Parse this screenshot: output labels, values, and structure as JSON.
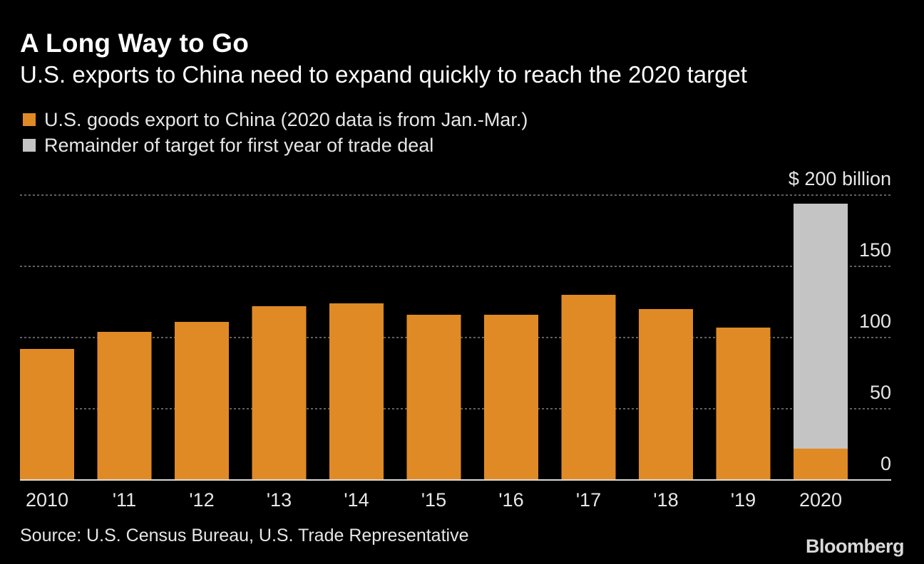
{
  "title": "A Long Way to Go",
  "subtitle": "U.S. exports to China need to expand quickly to reach the 2020 target",
  "legend": [
    {
      "label": "U.S. goods export to China (2020 data is from Jan.-Mar.)",
      "color": "#e08a26"
    },
    {
      "label": "Remainder of target for first year of trade deal",
      "color": "#c4c4c4"
    }
  ],
  "source": "Source: U.S. Census Bureau, U.S. Trade Representative",
  "brand": "Bloomberg",
  "chart_data": {
    "type": "bar",
    "stacked": true,
    "categories": [
      "2010",
      "'11",
      "'12",
      "'13",
      "'14",
      "'15",
      "'16",
      "'17",
      "'18",
      "'19",
      "2020"
    ],
    "series": [
      {
        "name": "U.S. goods export to China (2020 data is from Jan.-Mar.)",
        "color": "#e08a26",
        "values": [
          92,
          104,
          111,
          122,
          124,
          116,
          116,
          130,
          120,
          107,
          22
        ]
      },
      {
        "name": "Remainder of target for first year of trade deal",
        "color": "#c4c4c4",
        "values": [
          0,
          0,
          0,
          0,
          0,
          0,
          0,
          0,
          0,
          0,
          172
        ]
      }
    ],
    "ylim": [
      0,
      200
    ],
    "yticks": [
      {
        "value": 0,
        "label": "0"
      },
      {
        "value": 50,
        "label": "50"
      },
      {
        "value": 100,
        "label": "100"
      },
      {
        "value": 150,
        "label": "150"
      },
      {
        "value": 200,
        "label": "$ 200  billion"
      }
    ],
    "y_axis_side": "right",
    "grid": "dotted horizontal",
    "legend_position": "top-left"
  }
}
